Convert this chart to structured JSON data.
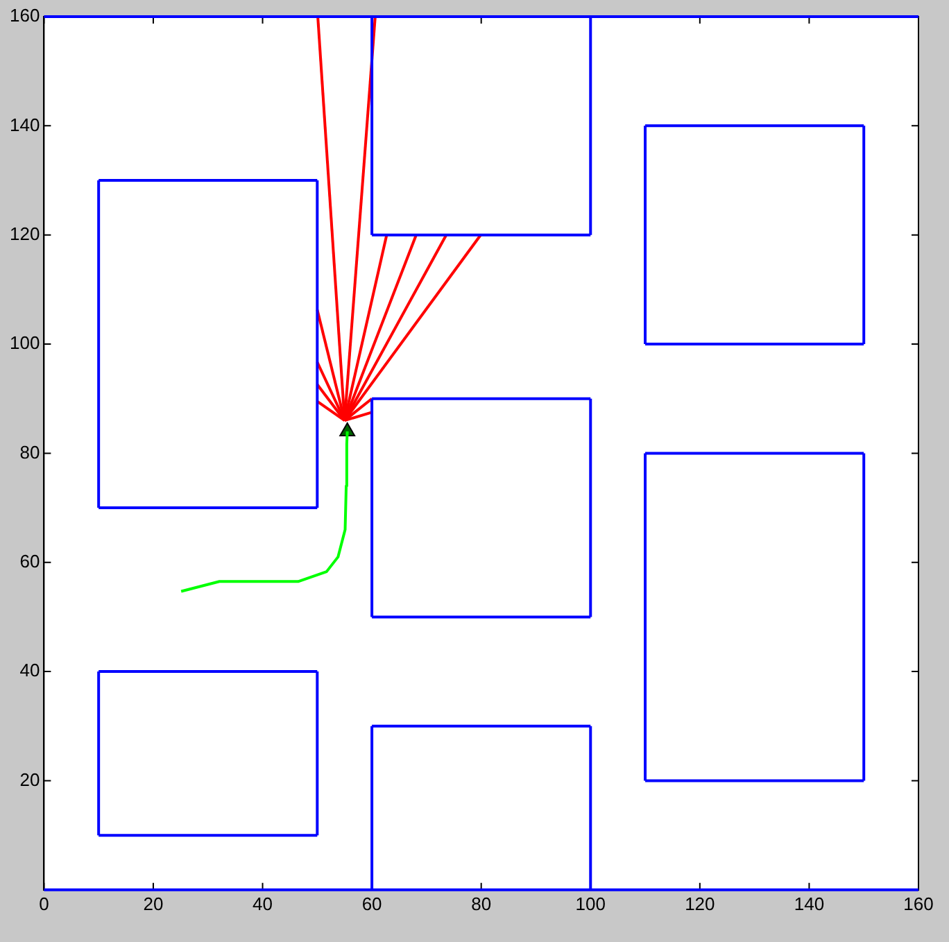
{
  "chart_data": {
    "type": "line",
    "xlim": [
      0,
      160
    ],
    "ylim": [
      0,
      160
    ],
    "xticks": [
      0,
      20,
      40,
      60,
      80,
      100,
      120,
      140,
      160
    ],
    "yticks": [
      20,
      40,
      60,
      80,
      100,
      120,
      140,
      160
    ],
    "ref_lines": [
      {
        "axis": "y",
        "value": 0,
        "color": "#0000ff"
      },
      {
        "axis": "y",
        "value": 160,
        "color": "#0000ff"
      }
    ],
    "grid": false,
    "legend": false,
    "line_style": "solid",
    "marker": "none",
    "series": [
      {
        "color": "#0000ff",
        "x": [
          10,
          50
        ],
        "values": [
          70,
          70
        ]
      },
      {
        "color": "#0000ff",
        "x": [
          10,
          50
        ],
        "values": [
          130,
          130
        ]
      },
      {
        "color": "#0000ff",
        "x": [
          10,
          10
        ],
        "values": [
          70,
          130
        ]
      },
      {
        "color": "#0000ff",
        "x": [
          50,
          50
        ],
        "values": [
          70,
          130
        ]
      },
      {
        "color": "#0000ff",
        "x": [
          60,
          100
        ],
        "values": [
          120,
          120
        ]
      },
      {
        "color": "#0000ff",
        "x": [
          60,
          60
        ],
        "values": [
          120,
          160
        ]
      },
      {
        "color": "#0000ff",
        "x": [
          100,
          100
        ],
        "values": [
          120,
          160
        ]
      },
      {
        "color": "#0000ff",
        "x": [
          110,
          150
        ],
        "values": [
          100,
          100
        ]
      },
      {
        "color": "#0000ff",
        "x": [
          110,
          150
        ],
        "values": [
          140,
          140
        ]
      },
      {
        "color": "#0000ff",
        "x": [
          110,
          110
        ],
        "values": [
          100,
          140
        ]
      },
      {
        "color": "#0000ff",
        "x": [
          150,
          150
        ],
        "values": [
          100,
          140
        ]
      },
      {
        "color": "#0000ff",
        "x": [
          60,
          100
        ],
        "values": [
          50,
          50
        ]
      },
      {
        "color": "#0000ff",
        "x": [
          60,
          100
        ],
        "values": [
          90,
          90
        ]
      },
      {
        "color": "#0000ff",
        "x": [
          60,
          60
        ],
        "values": [
          50,
          90
        ]
      },
      {
        "color": "#0000ff",
        "x": [
          100,
          100
        ],
        "values": [
          50,
          90
        ]
      },
      {
        "color": "#0000ff",
        "x": [
          110,
          150
        ],
        "values": [
          20,
          20
        ]
      },
      {
        "color": "#0000ff",
        "x": [
          110,
          150
        ],
        "values": [
          80,
          80
        ]
      },
      {
        "color": "#0000ff",
        "x": [
          110,
          110
        ],
        "values": [
          20,
          80
        ]
      },
      {
        "color": "#0000ff",
        "x": [
          150,
          150
        ],
        "values": [
          20,
          80
        ]
      },
      {
        "color": "#0000ff",
        "x": [
          10,
          50
        ],
        "values": [
          10,
          10
        ]
      },
      {
        "color": "#0000ff",
        "x": [
          10,
          50
        ],
        "values": [
          40,
          40
        ]
      },
      {
        "color": "#0000ff",
        "x": [
          10,
          10
        ],
        "values": [
          10,
          40
        ]
      },
      {
        "color": "#0000ff",
        "x": [
          50,
          50
        ],
        "values": [
          10,
          40
        ]
      },
      {
        "color": "#0000ff",
        "x": [
          60,
          100
        ],
        "values": [
          30,
          30
        ]
      },
      {
        "color": "#0000ff",
        "x": [
          60,
          60
        ],
        "values": [
          0,
          30
        ]
      },
      {
        "color": "#0000ff",
        "x": [
          100,
          100
        ],
        "values": [
          0,
          30
        ]
      },
      {
        "color": "#ff0000",
        "x": [
          55,
          50.1
        ],
        "values": [
          86,
          160
        ]
      },
      {
        "color": "#ff0000",
        "x": [
          55,
          60.6
        ],
        "values": [
          86,
          160
        ]
      },
      {
        "color": "#ff0000",
        "x": [
          55,
          62.7
        ],
        "values": [
          86,
          120
        ]
      },
      {
        "color": "#ff0000",
        "x": [
          55,
          68.1
        ],
        "values": [
          86,
          120
        ]
      },
      {
        "color": "#ff0000",
        "x": [
          55,
          73.6
        ],
        "values": [
          86,
          120
        ]
      },
      {
        "color": "#ff0000",
        "x": [
          55,
          79.9
        ],
        "values": [
          86,
          120
        ]
      },
      {
        "color": "#ff0000",
        "x": [
          55,
          50
        ],
        "values": [
          86,
          106.3
        ]
      },
      {
        "color": "#ff0000",
        "x": [
          55,
          50
        ],
        "values": [
          86,
          96.7
        ]
      },
      {
        "color": "#ff0000",
        "x": [
          55,
          50
        ],
        "values": [
          86,
          92.6
        ]
      },
      {
        "color": "#ff0000",
        "x": [
          55,
          50
        ],
        "values": [
          86,
          89.5
        ]
      },
      {
        "color": "#ff0000",
        "x": [
          55,
          60
        ],
        "values": [
          86,
          90
        ]
      },
      {
        "color": "#ff0000",
        "x": [
          55,
          60
        ],
        "values": [
          86,
          87.5
        ]
      },
      {
        "color": "#00ff00",
        "x": [
          25.1,
          32.1,
          46.5,
          51.7,
          53.8,
          55.1,
          55.3,
          55.4,
          55.5
        ],
        "values": [
          54.7,
          56.5,
          56.5,
          58.3,
          61,
          66,
          74,
          81.7,
          84
        ]
      },
      {
        "type": "scatter",
        "color": "#006400",
        "marker": "triangle",
        "x": [
          55.5
        ],
        "values": [
          84
        ]
      }
    ]
  }
}
